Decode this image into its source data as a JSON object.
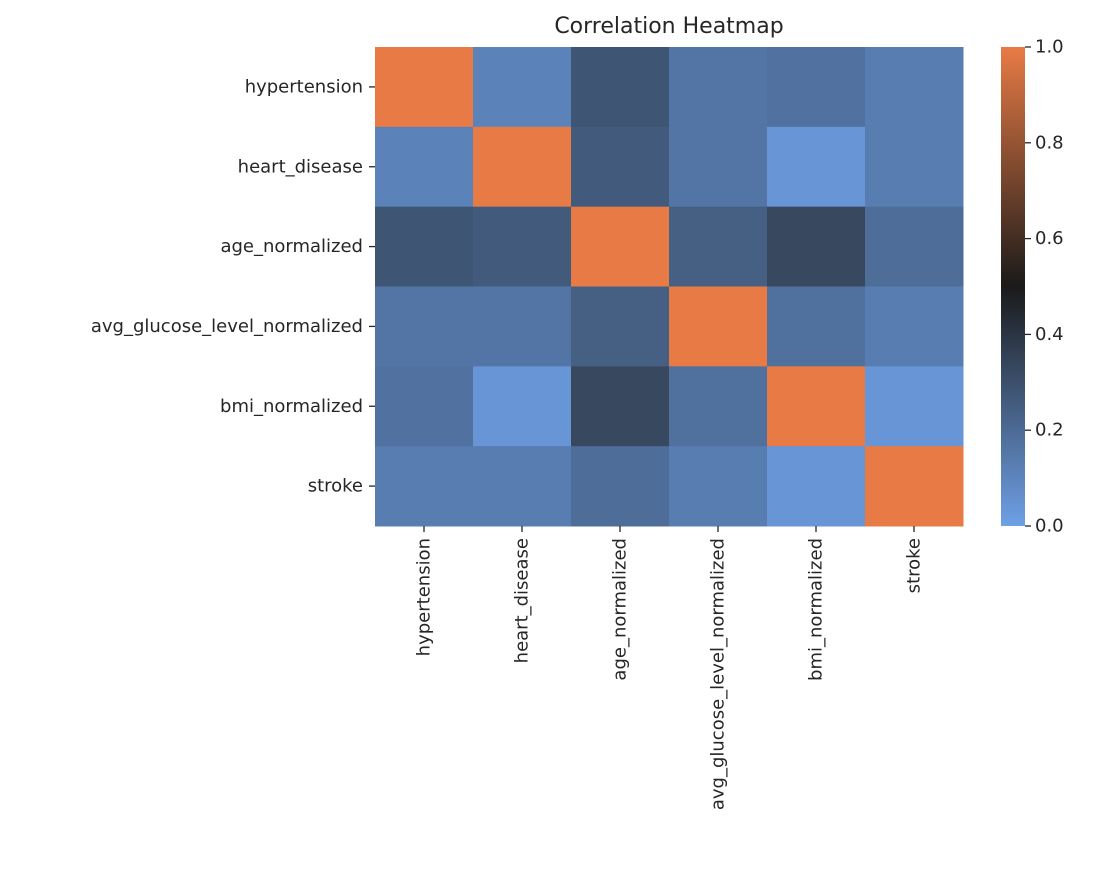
{
  "chart_data": {
    "type": "heatmap",
    "title": "Correlation Heatmap",
    "xlabel": "",
    "ylabel": "",
    "x_categories": [
      "hypertension",
      "heart_disease",
      "age_normalized",
      "avg_glucose_level_normalized",
      "bmi_normalized",
      "stroke"
    ],
    "y_categories": [
      "hypertension",
      "heart_disease",
      "age_normalized",
      "avg_glucose_level_normalized",
      "bmi_normalized",
      "stroke"
    ],
    "values": [
      [
        1.0,
        0.11,
        0.28,
        0.16,
        0.17,
        0.13
      ],
      [
        0.11,
        1.0,
        0.26,
        0.16,
        0.04,
        0.13
      ],
      [
        0.28,
        0.26,
        1.0,
        0.24,
        0.33,
        0.19
      ],
      [
        0.16,
        0.16,
        0.24,
        1.0,
        0.18,
        0.13
      ],
      [
        0.17,
        0.04,
        0.33,
        0.18,
        1.0,
        0.04
      ],
      [
        0.13,
        0.13,
        0.19,
        0.13,
        0.04,
        1.0
      ]
    ],
    "colorbar": {
      "range": [
        0.0,
        1.0
      ],
      "ticks": [
        "0.0",
        "0.2",
        "0.4",
        "0.6",
        "0.8",
        "1.0"
      ],
      "colors": [
        "#6ea0e6",
        "#1a1a1a",
        "#e87b45"
      ]
    },
    "grid": false,
    "legend": "colorbar-right"
  }
}
